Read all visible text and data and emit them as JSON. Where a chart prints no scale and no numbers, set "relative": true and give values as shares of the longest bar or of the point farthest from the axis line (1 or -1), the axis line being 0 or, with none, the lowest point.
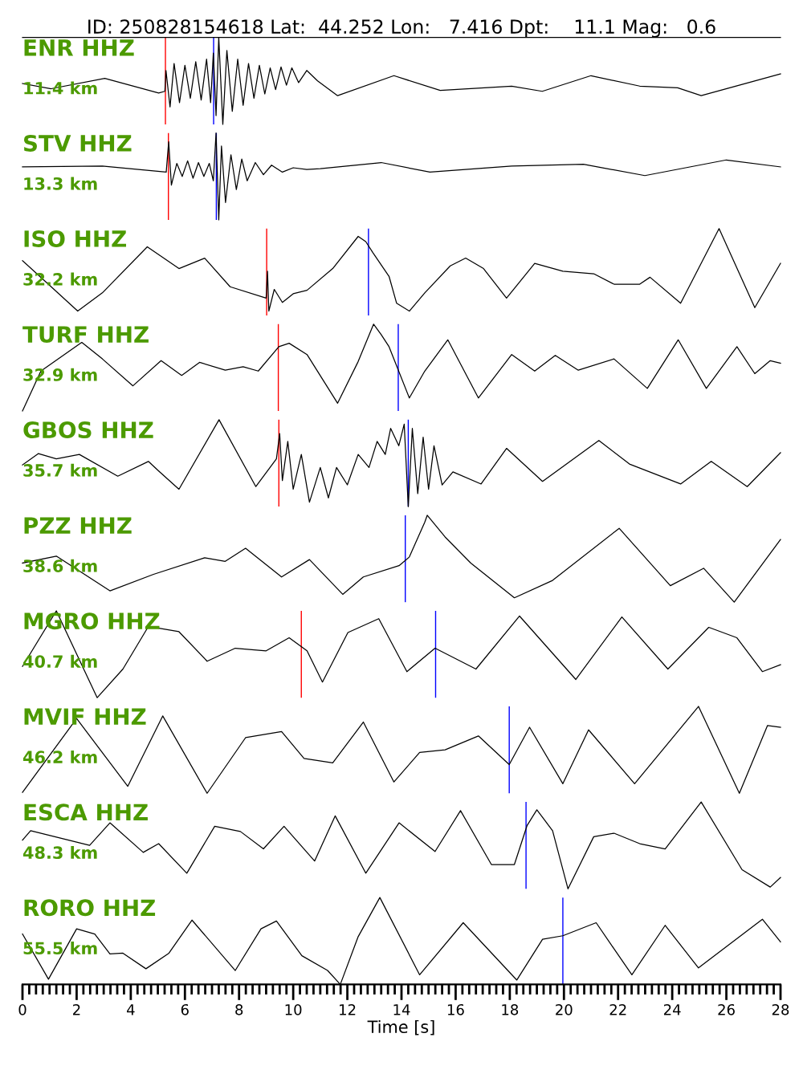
{
  "chart_data": [
    {
      "type": "line",
      "relative": true,
      "title": "ID: 250828154618 Lat:  44.252 Lon:   7.416 Dpt:    11.1 Mag:   0.6",
      "annotations": [
        "ENR HHZ",
        "11.4 km"
      ],
      "xlim": [
        0,
        28
      ],
      "tick_labels": false,
      "color": "#000000",
      "x": [
        0,
        1.06,
        3.04,
        5.03,
        5.26,
        5.3,
        5.45,
        5.6,
        5.8,
        6.0,
        6.2,
        6.4,
        6.6,
        6.8,
        6.95,
        7.05,
        7.15,
        7.25,
        7.4,
        7.55,
        7.75,
        7.95,
        8.15,
        8.35,
        8.55,
        8.75,
        8.95,
        9.15,
        9.35,
        9.55,
        9.75,
        9.95,
        10.2,
        10.5,
        10.9,
        11.64,
        13.72,
        15.43,
        18.07,
        19.2,
        21.0,
        22.8,
        24.2,
        25.07,
        28.0
      ],
      "values": [
        0.47,
        0.41,
        0.53,
        0.36,
        0.38,
        0.62,
        0.2,
        0.7,
        0.25,
        0.68,
        0.3,
        0.72,
        0.28,
        0.75,
        0.25,
        0.82,
        0.1,
        1.0,
        0.0,
        0.85,
        0.15,
        0.75,
        0.22,
        0.7,
        0.3,
        0.68,
        0.35,
        0.65,
        0.4,
        0.66,
        0.45,
        0.65,
        0.48,
        0.62,
        0.5,
        0.33,
        0.56,
        0.39,
        0.44,
        0.38,
        0.56,
        0.44,
        0.42,
        0.33,
        0.58
      ],
      "ref_lines": [
        {
          "axis": "x",
          "value": 5.28,
          "color": "#ff0000"
        },
        {
          "axis": "x",
          "value": 7.06,
          "color": "#0000ff"
        }
      ]
    },
    {
      "type": "line",
      "relative": true,
      "annotations": [
        "STV HHZ",
        "13.3 km"
      ],
      "xlim": [
        0,
        28
      ],
      "tick_labels": false,
      "color": "#000000",
      "x": [
        0,
        2.95,
        5.31,
        5.4,
        5.5,
        5.7,
        5.9,
        6.1,
        6.3,
        6.5,
        6.7,
        6.9,
        7.05,
        7.15,
        7.25,
        7.35,
        7.5,
        7.7,
        7.9,
        8.1,
        8.3,
        8.6,
        8.9,
        9.2,
        9.6,
        10.0,
        10.5,
        11.0,
        13.25,
        15.05,
        18.07,
        20.72,
        22.99,
        26.0,
        28.0
      ],
      "values": [
        0.61,
        0.62,
        0.55,
        0.9,
        0.4,
        0.65,
        0.5,
        0.68,
        0.48,
        0.66,
        0.5,
        0.65,
        0.45,
        1.0,
        0.0,
        0.85,
        0.2,
        0.75,
        0.35,
        0.7,
        0.45,
        0.66,
        0.52,
        0.63,
        0.55,
        0.6,
        0.58,
        0.59,
        0.66,
        0.55,
        0.62,
        0.64,
        0.51,
        0.69,
        0.61
      ],
      "ref_lines": [
        {
          "axis": "x",
          "value": 5.39,
          "color": "#ff0000"
        },
        {
          "axis": "x",
          "value": 7.16,
          "color": "#0000ff"
        }
      ]
    },
    {
      "type": "line",
      "relative": true,
      "annotations": [
        "ISO HHZ",
        "32.2 km"
      ],
      "xlim": [
        0,
        28
      ],
      "tick_labels": false,
      "color": "#000000",
      "x": [
        0,
        1.06,
        2.04,
        2.95,
        4.61,
        5.78,
        6.73,
        7.67,
        9.0,
        9.05,
        9.1,
        9.3,
        9.6,
        10.0,
        10.51,
        11.46,
        12.4,
        12.68,
        12.95,
        13.54,
        13.82,
        14.29,
        14.86,
        15.8,
        16.37,
        17.03,
        17.88,
        18.92,
        19.96,
        21.1,
        21.85,
        22.8,
        23.18,
        24.31,
        25.73,
        27.05,
        28.0
      ],
      "values": [
        0.63,
        0.33,
        0.05,
        0.26,
        0.79,
        0.54,
        0.66,
        0.33,
        0.2,
        0.51,
        0.05,
        0.3,
        0.15,
        0.25,
        0.29,
        0.54,
        0.91,
        0.85,
        0.72,
        0.45,
        0.14,
        0.05,
        0.26,
        0.57,
        0.66,
        0.54,
        0.2,
        0.6,
        0.51,
        0.48,
        0.36,
        0.36,
        0.44,
        0.14,
        1.0,
        0.09,
        0.6
      ],
      "ref_lines": [
        {
          "axis": "x",
          "value": 9.02,
          "color": "#ff0000"
        },
        {
          "axis": "x",
          "value": 12.78,
          "color": "#0000ff"
        }
      ]
    },
    {
      "type": "line",
      "relative": true,
      "annotations": [
        "TURF HHZ",
        "32.9 km"
      ],
      "xlim": [
        0,
        28
      ],
      "tick_labels": false,
      "color": "#000000",
      "x": [
        0,
        0.68,
        2.19,
        2.95,
        4.08,
        5.12,
        5.88,
        6.54,
        7.49,
        8.15,
        8.71,
        9.47,
        9.85,
        10.51,
        11.64,
        12.4,
        12.97,
        13.25,
        13.54,
        14.29,
        14.86,
        15.71,
        16.84,
        18.07,
        18.92,
        19.68,
        20.53,
        21.85,
        23.08,
        24.22,
        25.26,
        26.39,
        27.05,
        27.62,
        28.0
      ],
      "values": [
        0.0,
        0.46,
        0.79,
        0.6,
        0.29,
        0.58,
        0.41,
        0.56,
        0.47,
        0.51,
        0.46,
        0.74,
        0.78,
        0.65,
        0.09,
        0.57,
        1.0,
        0.88,
        0.74,
        0.15,
        0.46,
        0.82,
        0.15,
        0.65,
        0.46,
        0.64,
        0.47,
        0.6,
        0.26,
        0.82,
        0.26,
        0.74,
        0.43,
        0.58,
        0.55
      ],
      "ref_lines": [
        {
          "axis": "x",
          "value": 9.45,
          "color": "#ff0000"
        },
        {
          "axis": "x",
          "value": 13.88,
          "color": "#0000ff"
        }
      ]
    },
    {
      "type": "line",
      "relative": true,
      "annotations": [
        "GBOS HHZ",
        "35.7 km"
      ],
      "xlim": [
        0,
        28
      ],
      "tick_labels": false,
      "color": "#000000",
      "x": [
        0,
        0.59,
        1.25,
        2.1,
        3.52,
        4.65,
        5.03,
        5.78,
        7.26,
        8.62,
        9.38,
        9.5,
        9.6,
        9.8,
        10.0,
        10.3,
        10.6,
        11.0,
        11.3,
        11.6,
        12.0,
        12.4,
        12.8,
        13.1,
        13.4,
        13.6,
        13.9,
        14.1,
        14.25,
        14.4,
        14.6,
        14.8,
        15.0,
        15.2,
        15.5,
        15.9,
        16.94,
        17.88,
        19.21,
        21.29,
        22.42,
        24.31,
        25.44,
        26.77,
        28.0
      ],
      "values": [
        0.48,
        0.61,
        0.55,
        0.6,
        0.35,
        0.52,
        0.41,
        0.2,
        1.0,
        0.23,
        0.55,
        0.84,
        0.3,
        0.75,
        0.2,
        0.6,
        0.05,
        0.45,
        0.1,
        0.45,
        0.25,
        0.6,
        0.45,
        0.75,
        0.6,
        0.9,
        0.7,
        0.95,
        0.0,
        0.9,
        0.15,
        0.8,
        0.2,
        0.7,
        0.25,
        0.4,
        0.26,
        0.67,
        0.29,
        0.76,
        0.49,
        0.26,
        0.52,
        0.23,
        0.62
      ],
      "ref_lines": [
        {
          "axis": "x",
          "value": 9.47,
          "color": "#ff0000"
        },
        {
          "axis": "x",
          "value": 14.25,
          "color": "#0000ff"
        }
      ]
    },
    {
      "type": "line",
      "relative": true,
      "annotations": [
        "PZZ HHZ",
        "38.6 km"
      ],
      "xlim": [
        0,
        28
      ],
      "tick_labels": false,
      "color": "#000000",
      "x": [
        0,
        1.25,
        3.23,
        4.84,
        6.73,
        7.49,
        8.24,
        9.57,
        10.6,
        11.83,
        12.59,
        13.91,
        14.29,
        14.86,
        14.95,
        15.61,
        16.56,
        18.17,
        19.58,
        22.04,
        23.93,
        25.16,
        26.29,
        28.0
      ],
      "values": [
        0.45,
        0.53,
        0.13,
        0.32,
        0.51,
        0.47,
        0.62,
        0.29,
        0.49,
        0.09,
        0.29,
        0.42,
        0.52,
        0.92,
        1.0,
        0.75,
        0.45,
        0.05,
        0.25,
        0.85,
        0.19,
        0.39,
        0.0,
        0.72
      ],
      "ref_lines": [
        {
          "axis": "x",
          "value": 14.14,
          "color": "#0000ff"
        }
      ]
    },
    {
      "type": "line",
      "relative": true,
      "annotations": [
        "MGRO HHZ",
        "40.7 km"
      ],
      "xlim": [
        0,
        28
      ],
      "tick_labels": false,
      "color": "#000000",
      "x": [
        0,
        1.25,
        2.76,
        3.71,
        4.65,
        5.78,
        6.82,
        7.86,
        9.0,
        9.85,
        10.51,
        11.08,
        12.02,
        13.16,
        14.2,
        15.24,
        16.75,
        18.36,
        20.44,
        22.14,
        23.84,
        25.35,
        26.39,
        27.33,
        28.0
      ],
      "values": [
        0.36,
        1.0,
        0.0,
        0.33,
        0.82,
        0.76,
        0.42,
        0.57,
        0.54,
        0.69,
        0.54,
        0.18,
        0.75,
        0.91,
        0.3,
        0.57,
        0.33,
        0.94,
        0.21,
        0.93,
        0.33,
        0.81,
        0.69,
        0.3,
        0.38
      ],
      "ref_lines": [
        {
          "axis": "x",
          "value": 10.3,
          "color": "#ff0000"
        },
        {
          "axis": "x",
          "value": 15.26,
          "color": "#0000ff"
        }
      ]
    },
    {
      "type": "line",
      "relative": true,
      "annotations": [
        "MVIF HHZ",
        "46.2 km"
      ],
      "xlim": [
        0,
        28
      ],
      "tick_labels": false,
      "color": "#000000",
      "x": [
        0,
        2.0,
        3.89,
        5.18,
        6.82,
        8.24,
        9.57,
        10.4,
        11.46,
        12.59,
        13.72,
        14.67,
        15.61,
        16.84,
        17.98,
        18.73,
        19.96,
        20.91,
        22.61,
        24.97,
        26.48,
        27.52,
        28.0
      ],
      "values": [
        0.01,
        0.86,
        0.08,
        0.89,
        0.0,
        0.64,
        0.71,
        0.4,
        0.35,
        0.82,
        0.13,
        0.47,
        0.5,
        0.66,
        0.33,
        0.76,
        0.11,
        0.73,
        0.11,
        1.0,
        0.0,
        0.78,
        0.76
      ],
      "ref_lines": [
        {
          "axis": "x",
          "value": 17.98,
          "color": "#0000ff"
        }
      ]
    },
    {
      "type": "line",
      "relative": true,
      "annotations": [
        "ESCA HHZ",
        "48.3 km"
      ],
      "xlim": [
        0,
        28
      ],
      "tick_labels": false,
      "color": "#000000",
      "x": [
        0,
        0.3,
        2.48,
        3.23,
        4.46,
        5.03,
        6.07,
        7.1,
        8.05,
        8.9,
        9.66,
        10.79,
        11.55,
        12.68,
        13.91,
        15.24,
        16.18,
        17.32,
        18.17,
        18.64,
        19.0,
        19.58,
        20.15,
        21.1,
        21.85,
        22.8,
        23.74,
        25.07,
        26.58,
        27.62,
        28.0
      ],
      "values": [
        0.56,
        0.67,
        0.5,
        0.76,
        0.42,
        0.52,
        0.18,
        0.72,
        0.66,
        0.46,
        0.72,
        0.32,
        0.84,
        0.18,
        0.76,
        0.43,
        0.9,
        0.28,
        0.28,
        0.73,
        0.91,
        0.67,
        0.0,
        0.6,
        0.64,
        0.52,
        0.46,
        1.0,
        0.22,
        0.02,
        0.13
      ],
      "ref_lines": [
        {
          "axis": "x",
          "value": 18.6,
          "color": "#0000ff"
        }
      ]
    },
    {
      "type": "line",
      "relative": true,
      "annotations": [
        "RORO HHZ",
        "55.5 km"
      ],
      "xlim": [
        0,
        28
      ],
      "tick_labels": "x",
      "xlabel": "Time [s]",
      "color": "#000000",
      "x": [
        0,
        0.96,
        2.0,
        2.67,
        3.23,
        3.71,
        4.56,
        5.41,
        6.26,
        7.86,
        8.81,
        9.38,
        10.32,
        11.27,
        11.74,
        12.4,
        13.2,
        14.67,
        16.28,
        18.26,
        19.21,
        19.96,
        21.19,
        22.51,
        23.74,
        24.97,
        27.33,
        28.0
      ],
      "values": [
        0.58,
        0.06,
        0.64,
        0.58,
        0.35,
        0.36,
        0.18,
        0.36,
        0.74,
        0.16,
        0.64,
        0.73,
        0.33,
        0.16,
        0.0,
        0.55,
        1.0,
        0.11,
        0.71,
        0.05,
        0.52,
        0.56,
        0.71,
        0.11,
        0.68,
        0.19,
        0.75,
        0.49
      ],
      "ref_lines": [
        {
          "axis": "x",
          "value": 19.96,
          "color": "#0000ff"
        }
      ],
      "xticks": [
        0,
        {
          "value": 0.25,
          "label": null
        },
        {
          "value": 0.5,
          "label": null
        },
        {
          "value": 0.75,
          "label": null
        },
        {
          "value": 1,
          "label": null
        },
        {
          "value": 1.25,
          "label": null
        },
        {
          "value": 1.5,
          "label": null
        },
        {
          "value": 1.75,
          "label": null
        },
        2,
        {
          "value": 2.25,
          "label": null
        },
        {
          "value": 2.5,
          "label": null
        },
        {
          "value": 2.75,
          "label": null
        },
        {
          "value": 3,
          "label": null
        },
        {
          "value": 3.25,
          "label": null
        },
        {
          "value": 3.5,
          "label": null
        },
        {
          "value": 3.75,
          "label": null
        },
        4,
        {
          "value": 4.25,
          "label": null
        },
        {
          "value": 4.5,
          "label": null
        },
        {
          "value": 4.75,
          "label": null
        },
        {
          "value": 5,
          "label": null
        },
        {
          "value": 5.25,
          "label": null
        },
        {
          "value": 5.5,
          "label": null
        },
        {
          "value": 5.75,
          "label": null
        },
        6,
        {
          "value": 6.25,
          "label": null
        },
        {
          "value": 6.5,
          "label": null
        },
        {
          "value": 6.75,
          "label": null
        },
        {
          "value": 7,
          "label": null
        },
        {
          "value": 7.25,
          "label": null
        },
        {
          "value": 7.5,
          "label": null
        },
        {
          "value": 7.75,
          "label": null
        },
        8,
        {
          "value": 8.25,
          "label": null
        },
        {
          "value": 8.5,
          "label": null
        },
        {
          "value": 8.75,
          "label": null
        },
        {
          "value": 9,
          "label": null
        },
        {
          "value": 9.25,
          "label": null
        },
        {
          "value": 9.5,
          "label": null
        },
        {
          "value": 9.75,
          "label": null
        },
        10,
        {
          "value": 10.25,
          "label": null
        },
        {
          "value": 10.5,
          "label": null
        },
        {
          "value": 10.75,
          "label": null
        },
        {
          "value": 11,
          "label": null
        },
        {
          "value": 11.25,
          "label": null
        },
        {
          "value": 11.5,
          "label": null
        },
        {
          "value": 11.75,
          "label": null
        },
        12,
        {
          "value": 12.25,
          "label": null
        },
        {
          "value": 12.5,
          "label": null
        },
        {
          "value": 12.75,
          "label": null
        },
        {
          "value": 13,
          "label": null
        },
        {
          "value": 13.25,
          "label": null
        },
        {
          "value": 13.5,
          "label": null
        },
        {
          "value": 13.75,
          "label": null
        },
        14,
        {
          "value": 14.25,
          "label": null
        },
        {
          "value": 14.5,
          "label": null
        },
        {
          "value": 14.75,
          "label": null
        },
        {
          "value": 15,
          "label": null
        },
        {
          "value": 15.25,
          "label": null
        },
        {
          "value": 15.5,
          "label": null
        },
        {
          "value": 15.75,
          "label": null
        },
        16,
        {
          "value": 16.25,
          "label": null
        },
        {
          "value": 16.5,
          "label": null
        },
        {
          "value": 16.75,
          "label": null
        },
        {
          "value": 17,
          "label": null
        },
        {
          "value": 17.25,
          "label": null
        },
        {
          "value": 17.5,
          "label": null
        },
        {
          "value": 17.75,
          "label": null
        },
        18,
        {
          "value": 18.25,
          "label": null
        },
        {
          "value": 18.5,
          "label": null
        },
        {
          "value": 18.75,
          "label": null
        },
        {
          "value": 19,
          "label": null
        },
        {
          "value": 19.25,
          "label": null
        },
        {
          "value": 19.5,
          "label": null
        },
        {
          "value": 19.75,
          "label": null
        },
        20,
        {
          "value": 20.25,
          "label": null
        },
        {
          "value": 20.5,
          "label": null
        },
        {
          "value": 20.75,
          "label": null
        },
        {
          "value": 21,
          "label": null
        },
        {
          "value": 21.25,
          "label": null
        },
        {
          "value": 21.5,
          "label": null
        },
        {
          "value": 21.75,
          "label": null
        },
        22,
        {
          "value": 22.25,
          "label": null
        },
        {
          "value": 22.5,
          "label": null
        },
        {
          "value": 22.75,
          "label": null
        },
        {
          "value": 23,
          "label": null
        },
        {
          "value": 23.25,
          "label": null
        },
        {
          "value": 23.5,
          "label": null
        },
        {
          "value": 23.75,
          "label": null
        },
        24,
        {
          "value": 24.25,
          "label": null
        },
        {
          "value": 24.5,
          "label": null
        },
        {
          "value": 24.75,
          "label": null
        },
        {
          "value": 25,
          "label": null
        },
        {
          "value": 25.25,
          "label": null
        },
        {
          "value": 25.5,
          "label": null
        },
        {
          "value": 25.75,
          "label": null
        },
        26,
        {
          "value": 26.25,
          "label": null
        },
        {
          "value": 26.5,
          "label": null
        },
        {
          "value": 26.75,
          "label": null
        },
        {
          "value": 27,
          "label": null
        },
        {
          "value": 27.25,
          "label": null
        },
        {
          "value": 27.5,
          "label": null
        },
        {
          "value": 27.75,
          "label": null
        },
        28
      ]
    }
  ]
}
